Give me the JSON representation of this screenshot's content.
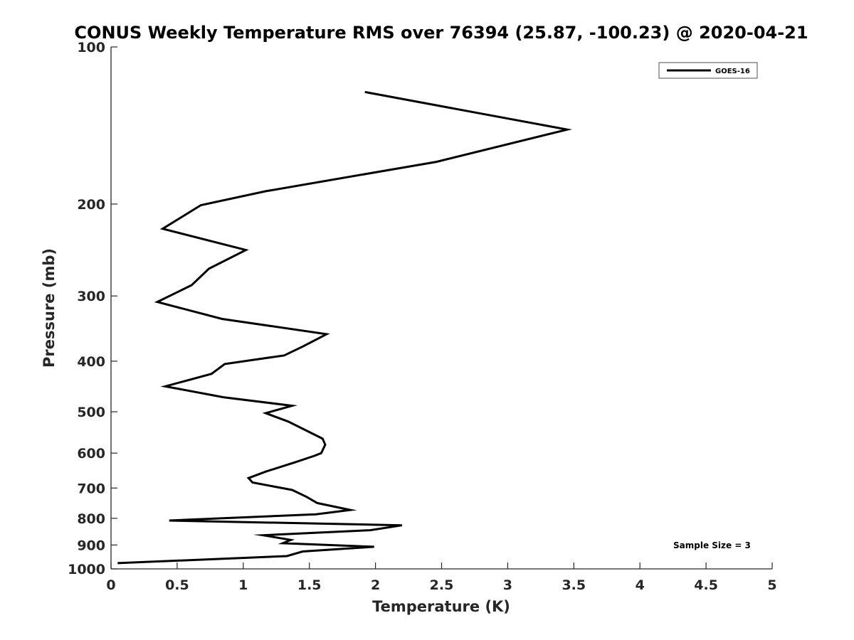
{
  "chart_data": {
    "type": "line",
    "title": "CONUS Weekly Temperature RMS over 76394 (25.87, -100.23) @ 2020-04-21",
    "xlabel": "Temperature (K)",
    "ylabel": "Pressure (mb)",
    "xlim": [
      0,
      5
    ],
    "ylim": [
      100,
      1000
    ],
    "y_scale": "log",
    "y_reversed": true,
    "grid": false,
    "x_ticks": [
      "0",
      "0.5",
      "1",
      "1.5",
      "2",
      "2.5",
      "3",
      "3.5",
      "4",
      "4.5",
      "5"
    ],
    "y_ticks": [
      "100",
      "200",
      "300",
      "400",
      "500",
      "600",
      "700",
      "800",
      "900",
      "1000"
    ],
    "legend": {
      "position": "top-right",
      "entries": [
        "GOES-16"
      ]
    },
    "annotation": "Sample Size = 3",
    "series": [
      {
        "name": "GOES-16",
        "color": "#000000",
        "points": [
          [
            1.92,
            122
          ],
          [
            3.45,
            144
          ],
          [
            2.46,
            166
          ],
          [
            1.17,
            189
          ],
          [
            0.68,
            201
          ],
          [
            0.39,
            223
          ],
          [
            1.02,
            245
          ],
          [
            0.74,
            266
          ],
          [
            0.61,
            286
          ],
          [
            0.35,
            308
          ],
          [
            0.84,
            332
          ],
          [
            1.63,
            355
          ],
          [
            1.45,
            375
          ],
          [
            1.31,
            390
          ],
          [
            0.86,
            405
          ],
          [
            0.76,
            423
          ],
          [
            0.41,
            447
          ],
          [
            0.85,
            469
          ],
          [
            1.37,
            487
          ],
          [
            1.17,
            503
          ],
          [
            1.34,
            522
          ],
          [
            1.6,
            563
          ],
          [
            1.62,
            578
          ],
          [
            1.59,
            600
          ],
          [
            1.54,
            607
          ],
          [
            1.39,
            625
          ],
          [
            1.17,
            651
          ],
          [
            1.04,
            670
          ],
          [
            1.07,
            683
          ],
          [
            1.37,
            706
          ],
          [
            1.48,
            728
          ],
          [
            1.56,
            748
          ],
          [
            1.81,
            771
          ],
          [
            1.55,
            786
          ],
          [
            0.44,
            808
          ],
          [
            2.2,
            825
          ],
          [
            1.96,
            843
          ],
          [
            1.15,
            862
          ],
          [
            1.36,
            880
          ],
          [
            1.3,
            893
          ],
          [
            1.99,
            907
          ],
          [
            1.45,
            926
          ],
          [
            1.33,
            945
          ],
          [
            0.05,
            975
          ]
        ]
      }
    ]
  }
}
